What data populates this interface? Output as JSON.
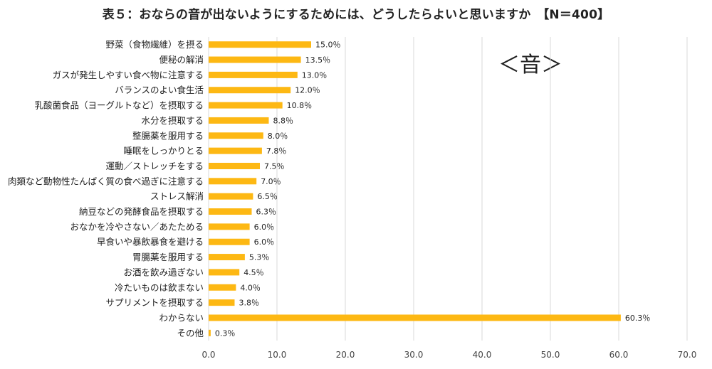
{
  "chart_data": {
    "type": "bar",
    "orientation": "horizontal",
    "title": "表５：おならの音が出ないようにするためには、どうしたらよいと思いますか　【N＝400】",
    "annotation": "＜音＞",
    "categories": [
      "野菜（食物繊維）を摂る",
      "便秘の解消",
      "ガスが発生しやすい食べ物に注意する",
      "バランスのよい食生活",
      "乳酸菌食品（ヨーグルトなど）を摂取する",
      "水分を摂取する",
      "整腸薬を服用する",
      "睡眠をしっかりとる",
      "運動／ストレッチをする",
      "肉類など動物性たんぱく質の食べ過ぎに注意する",
      "ストレス解消",
      "納豆などの発酵食品を摂取する",
      "おなかを冷やさない／あたためる",
      "早食いや暴飲暴食を避ける",
      "胃腸薬を服用する",
      "お酒を飲み過ぎない",
      "冷たいものは飲まない",
      "サプリメントを摂取する",
      "わからない",
      "その他"
    ],
    "values": [
      15.0,
      13.5,
      13.0,
      12.0,
      10.8,
      8.8,
      8.0,
      7.8,
      7.5,
      7.0,
      6.5,
      6.3,
      6.0,
      6.0,
      5.3,
      4.5,
      4.0,
      3.8,
      60.3,
      0.3
    ],
    "value_labels": [
      "15.0％",
      "13.5％",
      "13.0％",
      "12.0％",
      "10.8％",
      "8.8％",
      "8.0％",
      "7.8％",
      "7.5％",
      "7.0％",
      "6.5％",
      "6.3％",
      "6.0％",
      "6.0％",
      "5.3％",
      "4.5％",
      "4.0％",
      "3.8％",
      "60.3％",
      "0.3％"
    ],
    "xlim": [
      0,
      70
    ],
    "xticks": [
      "0.0",
      "10.0",
      "20.0",
      "30.0",
      "40.0",
      "50.0",
      "60.0",
      "70.0"
    ],
    "grid": "vertical",
    "bar_color": "#FDB813"
  }
}
